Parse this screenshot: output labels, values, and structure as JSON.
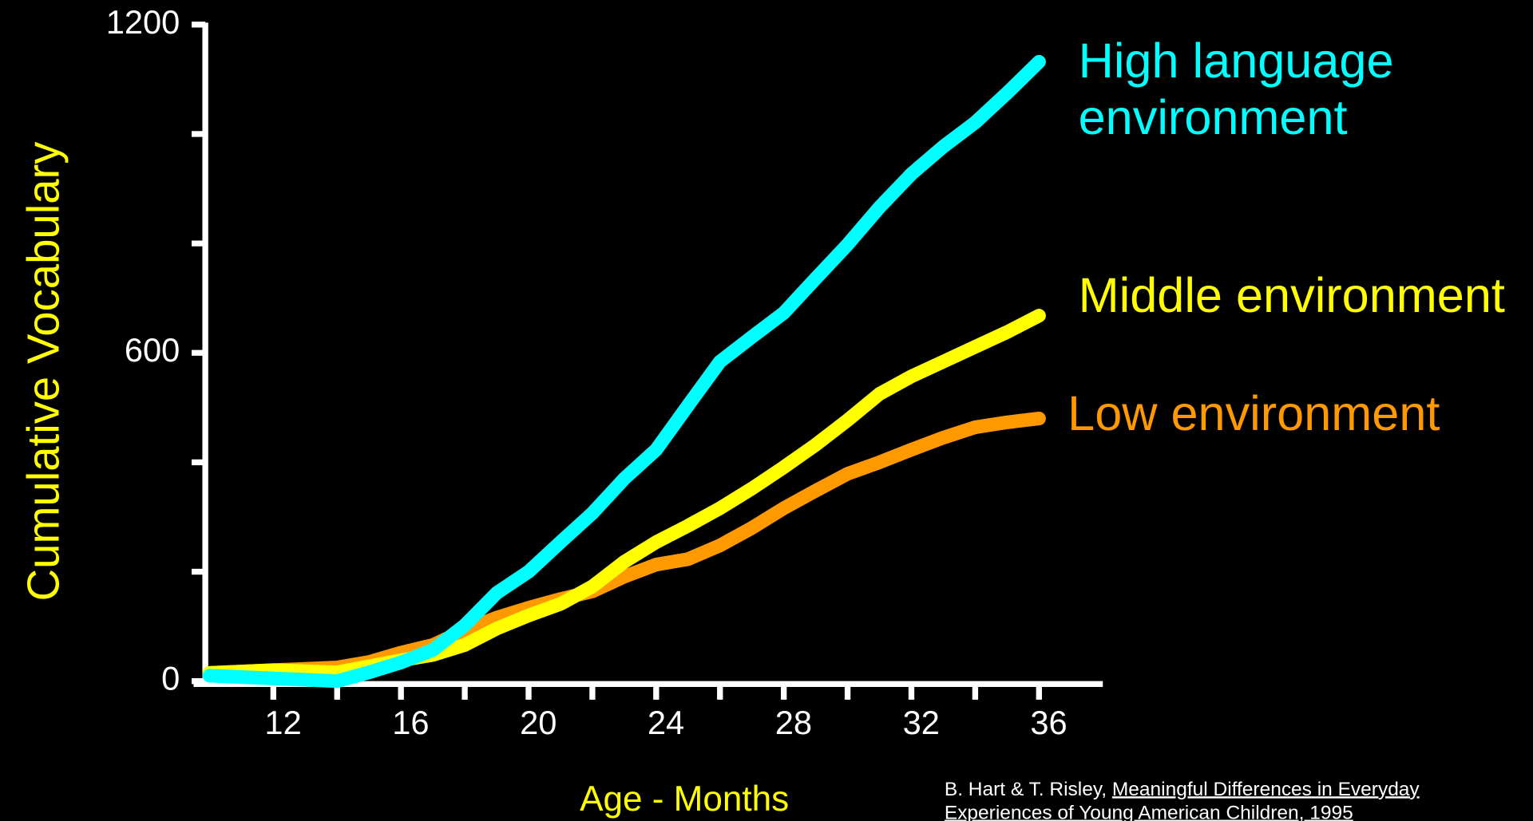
{
  "chart_data": {
    "type": "line",
    "ylabel": "Cumulative Vocabulary",
    "xlabel": "Age - Months",
    "x": [
      10,
      12,
      14,
      15,
      16,
      17,
      18,
      19,
      20,
      21,
      22,
      23,
      24,
      25,
      26,
      27,
      28,
      29,
      30,
      31,
      32,
      33,
      34,
      35,
      36
    ],
    "series": [
      {
        "name": "High language environment",
        "color": "#00ffff",
        "values": [
          10,
          5,
          0,
          16,
          34,
          57,
          102,
          161,
          200,
          254,
          307,
          370,
          423,
          504,
          584,
          629,
          673,
          736,
          798,
          866,
          927,
          977,
          1021,
          1075,
          1132
        ]
      },
      {
        "name": "Middle environment",
        "color": "#ffff00",
        "values": [
          15,
          20,
          16,
          27,
          38,
          48,
          66,
          96,
          120,
          141,
          173,
          218,
          254,
          284,
          316,
          352,
          391,
          432,
          477,
          525,
          557,
          584,
          611,
          638,
          668
        ]
      },
      {
        "name": "Low environment",
        "color": "#ff9900",
        "values": [
          15,
          20,
          25,
          35,
          52,
          66,
          93,
          116,
          134,
          150,
          164,
          191,
          213,
          223,
          248,
          280,
          316,
          348,
          379,
          400,
          423,
          445,
          464,
          473,
          480
        ]
      }
    ],
    "xlim": [
      9.5,
      38
    ],
    "xticks": [
      12,
      16,
      20,
      24,
      28,
      32,
      36
    ],
    "xminor_ticks": [
      14,
      18,
      22,
      26,
      30,
      34
    ],
    "ylim": [
      0,
      1200
    ],
    "yticks": [
      0,
      600,
      1200
    ],
    "yminor_ticks": [
      200,
      400,
      800,
      1000
    ],
    "grid": false
  },
  "source": {
    "authors": "B. Hart & T. Risley,",
    "title": "Meaningful Differences in Everyday Experiences of Young American Children, 1995"
  }
}
